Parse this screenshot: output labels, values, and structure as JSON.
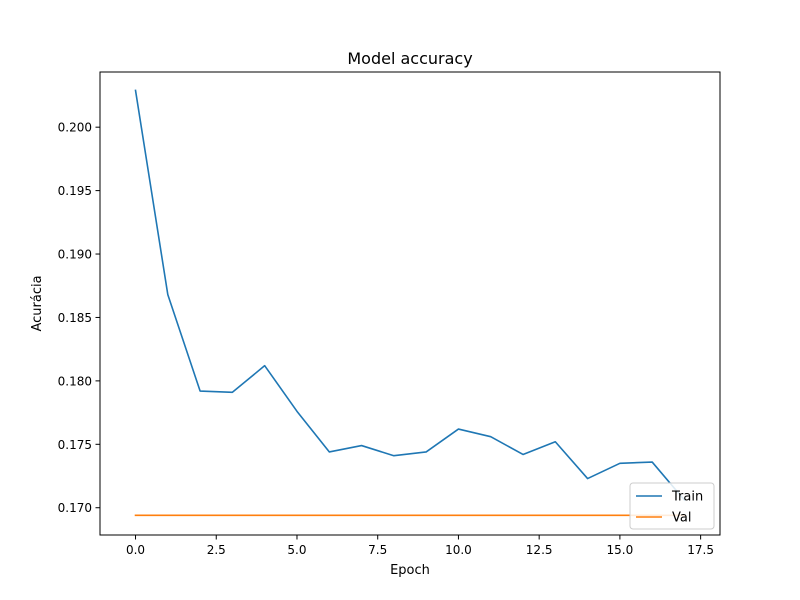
{
  "chart_data": {
    "type": "line",
    "title": "Model accuracy",
    "xlabel": "Epoch",
    "ylabel": "Acurácia",
    "xlim": [
      -1.1,
      18.1
    ],
    "ylim": [
      0.16785,
      0.20435
    ],
    "xticks": [
      0.0,
      2.5,
      5.0,
      7.5,
      10.0,
      12.5,
      15.0,
      17.5
    ],
    "xtick_labels": [
      "0.0",
      "2.5",
      "5.0",
      "7.5",
      "10.0",
      "12.5",
      "15.0",
      "17.5"
    ],
    "yticks": [
      0.17,
      0.175,
      0.18,
      0.185,
      0.19,
      0.195,
      0.2
    ],
    "ytick_labels": [
      "0.170",
      "0.175",
      "0.180",
      "0.185",
      "0.190",
      "0.195",
      "0.200"
    ],
    "grid": false,
    "legend_position": "lower-right",
    "series": [
      {
        "name": "Train",
        "color": "#1f77b4",
        "x": [
          0,
          1,
          2,
          3,
          4,
          5,
          6,
          7,
          8,
          9,
          10,
          11,
          12,
          13,
          14,
          15,
          16,
          17
        ],
        "values": [
          0.2029,
          0.1868,
          0.1792,
          0.1791,
          0.1812,
          0.1776,
          0.1744,
          0.1749,
          0.1741,
          0.1744,
          0.1762,
          0.1756,
          0.1742,
          0.1752,
          0.1723,
          0.1735,
          0.1736,
          0.1706
        ]
      },
      {
        "name": "Val",
        "color": "#ff7f0e",
        "x": [
          0,
          1,
          2,
          3,
          4,
          5,
          6,
          7,
          8,
          9,
          10,
          11,
          12,
          13,
          14,
          15,
          16,
          17
        ],
        "values": [
          0.1694,
          0.1694,
          0.1694,
          0.1694,
          0.1694,
          0.1694,
          0.1694,
          0.1694,
          0.1694,
          0.1694,
          0.1694,
          0.1694,
          0.1694,
          0.1694,
          0.1694,
          0.1694,
          0.1694,
          0.1694
        ]
      }
    ]
  }
}
